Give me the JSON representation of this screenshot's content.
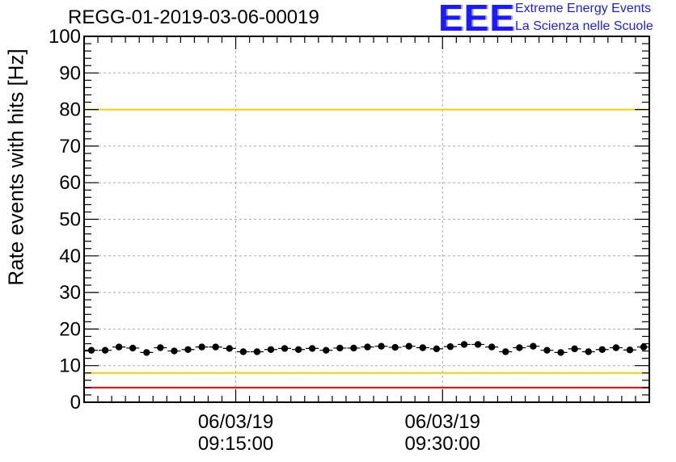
{
  "title": "REGG-01-2019-03-06-00019",
  "logo": {
    "mark": "EEE",
    "line1": "Extreme Energy Events",
    "line2": "La Scienza nelle Scuole"
  },
  "chart_data": {
    "type": "scatter",
    "title": "REGG-01-2019-03-06-00019",
    "xlabel": "",
    "ylabel": "Rate events with hits [Hz]",
    "ylim": [
      0,
      100
    ],
    "y_ticks": [
      "0",
      "10",
      "20",
      "30",
      "40",
      "50",
      "60",
      "70",
      "80",
      "90",
      "100"
    ],
    "x_tick_labels": [
      {
        "date": "06/03/19",
        "time": "09:15:00"
      },
      {
        "date": "06/03/19",
        "time": "09:30:00"
      }
    ],
    "xlim_minutes_of_day": [
      544,
      585
    ],
    "x_ticks_minutes_of_day": [
      555,
      570
    ],
    "grid": true,
    "reference_lines": [
      {
        "y": 100,
        "color": "#ff0000"
      },
      {
        "y": 80,
        "color": "#ffcc00"
      },
      {
        "y": 8,
        "color": "#ffcc00"
      },
      {
        "y": 4,
        "color": "#ff0000"
      }
    ],
    "series": [
      {
        "marker_color": "#000000",
        "y": [
          14.2,
          14.2,
          15.1,
          14.8,
          13.6,
          14.9,
          14.0,
          14.4,
          15.1,
          15.1,
          14.7,
          13.8,
          13.8,
          14.4,
          14.7,
          14.4,
          14.7,
          14.2,
          14.8,
          14.8,
          15.1,
          15.3,
          15.0,
          15.3,
          14.9,
          14.6,
          15.2,
          15.8,
          15.8,
          15.1,
          13.8,
          14.9,
          15.3,
          14.2,
          13.6,
          14.6,
          13.8,
          14.4,
          14.9,
          14.3,
          15.1
        ]
      }
    ]
  }
}
